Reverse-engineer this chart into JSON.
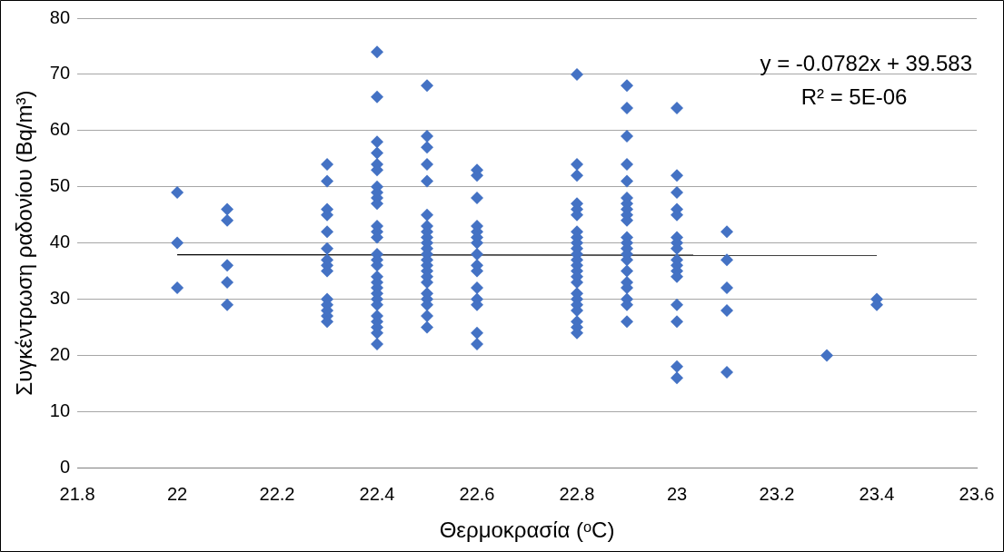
{
  "chart_data": {
    "type": "scatter",
    "xlabel": "Θερμοκρασία (ᵒC)",
    "ylabel": "Συγκέντρωση ραδονίου (Bq/m³)",
    "xlim": [
      21.8,
      23.6
    ],
    "xticks": [
      21.8,
      22,
      22.2,
      22.4,
      22.6,
      22.8,
      23,
      23.2,
      23.4,
      23.6
    ],
    "ylim": [
      0,
      80
    ],
    "yticks": [
      0,
      10,
      20,
      30,
      40,
      50,
      60,
      70,
      80
    ],
    "grid": "y",
    "legend": false,
    "marker": "diamond",
    "annotations": [
      "y = -0.0782x + 39.583",
      "R² = 5E-06"
    ],
    "series": [
      {
        "color": "#4472c4",
        "x": [
          22,
          22,
          22,
          22.1,
          22.1,
          22.1,
          22.1,
          22.1,
          22.3,
          22.3,
          22.3,
          22.3,
          22.3,
          22.3,
          22.3,
          22.3,
          22.3,
          22.3,
          22.3,
          22.3,
          22.3,
          22.3,
          22.4,
          22.4,
          22.4,
          22.4,
          22.4,
          22.4,
          22.4,
          22.4,
          22.4,
          22.4,
          22.4,
          22.4,
          22.4,
          22.4,
          22.4,
          22.4,
          22.4,
          22.4,
          22.4,
          22.4,
          22.4,
          22.4,
          22.4,
          22.4,
          22.4,
          22.4,
          22.4,
          22.5,
          22.5,
          22.5,
          22.5,
          22.5,
          22.5,
          22.5,
          22.5,
          22.5,
          22.5,
          22.5,
          22.5,
          22.5,
          22.5,
          22.5,
          22.5,
          22.5,
          22.5,
          22.5,
          22.5,
          22.5,
          22.5,
          22.6,
          22.6,
          22.6,
          22.6,
          22.6,
          22.6,
          22.6,
          22.6,
          22.6,
          22.6,
          22.6,
          22.6,
          22.6,
          22.6,
          22.6,
          22.8,
          22.8,
          22.8,
          22.8,
          22.8,
          22.8,
          22.8,
          22.8,
          22.8,
          22.8,
          22.8,
          22.8,
          22.8,
          22.8,
          22.8,
          22.8,
          22.8,
          22.8,
          22.8,
          22.8,
          22.8,
          22.8,
          22.8,
          22.9,
          22.9,
          22.9,
          22.9,
          22.9,
          22.9,
          22.9,
          22.9,
          22.9,
          22.9,
          22.9,
          22.9,
          22.9,
          22.9,
          22.9,
          22.9,
          22.9,
          22.9,
          22.9,
          22.9,
          22.9,
          23,
          23,
          23,
          23,
          23,
          23,
          23,
          23,
          23,
          23,
          23,
          23,
          23,
          23,
          23,
          23,
          23.1,
          23.1,
          23.1,
          23.1,
          23.1,
          23.3,
          23.4,
          23.4
        ],
        "values": [
          49,
          40,
          32,
          46,
          44,
          36,
          33,
          29,
          54,
          51,
          46,
          45,
          42,
          39,
          37,
          36,
          35,
          30,
          29,
          28,
          27,
          26,
          74,
          66,
          58,
          56,
          54,
          53,
          50,
          49,
          48,
          47,
          43,
          42,
          41,
          38,
          37,
          36,
          34,
          33,
          32,
          31,
          30,
          29,
          27,
          26,
          25,
          24,
          22,
          68,
          59,
          57,
          54,
          51,
          45,
          43,
          42,
          41,
          40,
          39,
          38,
          37,
          36,
          35,
          34,
          33,
          31,
          30,
          29,
          27,
          25,
          53,
          52,
          48,
          43,
          42,
          41,
          40,
          38,
          36,
          35,
          32,
          30,
          29,
          24,
          22,
          70,
          54,
          52,
          47,
          46,
          45,
          42,
          41,
          40,
          39,
          38,
          37,
          36,
          35,
          34,
          33,
          31,
          30,
          29,
          28,
          26,
          25,
          24,
          68,
          64,
          59,
          54,
          51,
          48,
          47,
          46,
          45,
          44,
          41,
          40,
          39,
          38,
          37,
          35,
          33,
          32,
          30,
          29,
          26,
          64,
          52,
          49,
          46,
          45,
          41,
          40,
          39,
          37,
          36,
          35,
          34,
          29,
          26,
          18,
          16,
          42,
          37,
          32,
          28,
          17,
          20,
          30,
          29
        ]
      },
      {
        "type": "line",
        "marker": "none",
        "color": "#000000",
        "x": [
          22,
          23.4
        ],
        "values": [
          37.9,
          37.8
        ]
      }
    ]
  }
}
